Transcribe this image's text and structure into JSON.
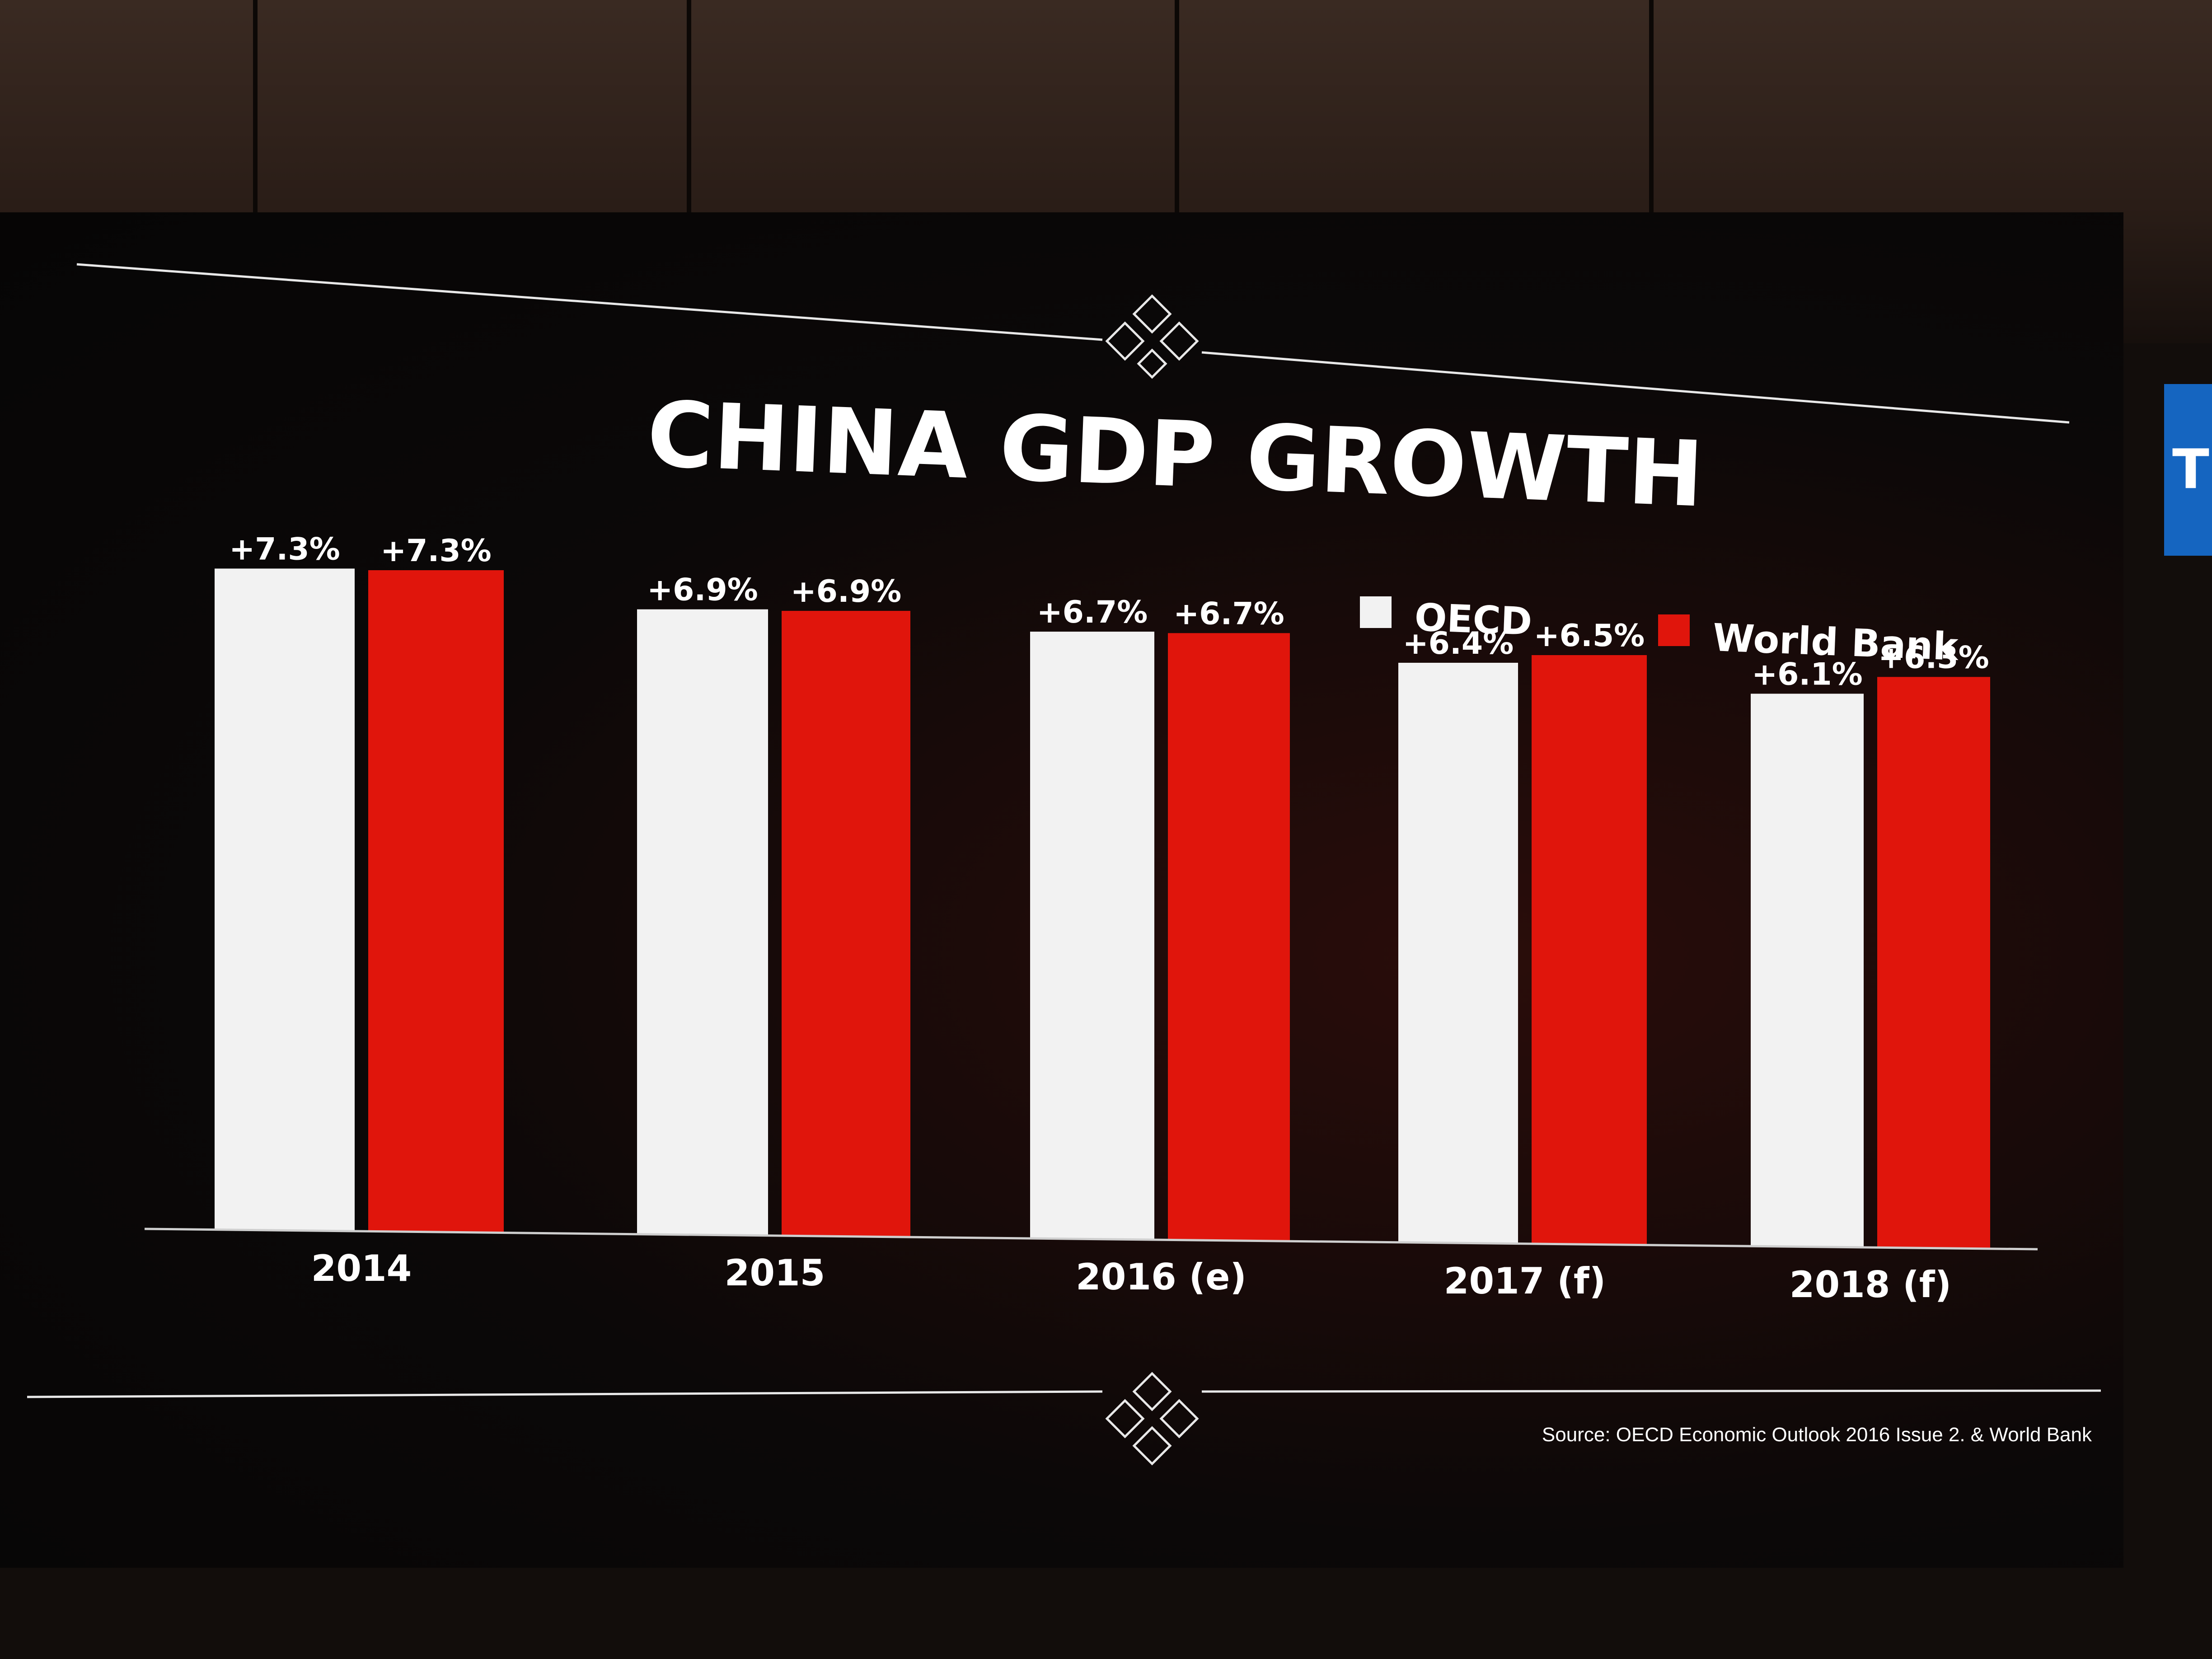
{
  "chart_data": {
    "type": "bar",
    "title": "CHINA GDP GROWTH",
    "categories": [
      "2014",
      "2015",
      "2016 (e)",
      "2017 (f)",
      "2018 (f)"
    ],
    "series": [
      {
        "name": "OECD",
        "color": "#f2f2f2",
        "values": [
          7.3,
          6.9,
          6.7,
          6.4,
          6.1
        ],
        "labels": [
          "+7.3%",
          "+6.9%",
          "+6.7%",
          "+6.4%",
          "+6.1%"
        ]
      },
      {
        "name": "World Bank",
        "color": "#e0150c",
        "values": [
          7.3,
          6.9,
          6.7,
          6.5,
          6.3
        ],
        "labels": [
          "+7.3%",
          "+6.9%",
          "+6.7%",
          "+6.5%",
          "+6.3%"
        ]
      }
    ],
    "ylim": [
      0,
      7.5
    ],
    "legend": "top-right",
    "grid": false,
    "xlabel": "",
    "ylabel": ""
  },
  "source": "Source: OECD Economic Outlook 2016 Issue 2. & World Bank",
  "side_screen_text": "TI"
}
